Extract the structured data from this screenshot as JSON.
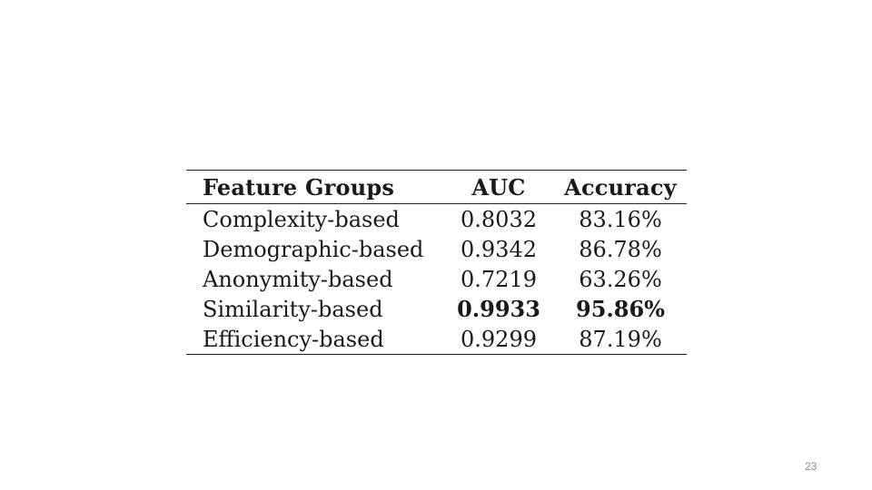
{
  "table": {
    "headers": {
      "group": "Feature Groups",
      "auc": "AUC",
      "accuracy": "Accuracy"
    },
    "rows": [
      {
        "group": "Complexity-based",
        "auc": "0.8032",
        "accuracy": "83.16%"
      },
      {
        "group": "Demographic-based",
        "auc": "0.9342",
        "accuracy": "86.78%"
      },
      {
        "group": "Anonymity-based",
        "auc": "0.7219",
        "accuracy": "63.26%"
      },
      {
        "group": "Similarity-based",
        "auc": "0.9933",
        "accuracy": "95.86%"
      },
      {
        "group": "Efficiency-based",
        "auc": "0.9299",
        "accuracy": "87.19%"
      }
    ]
  },
  "page_number": "23"
}
